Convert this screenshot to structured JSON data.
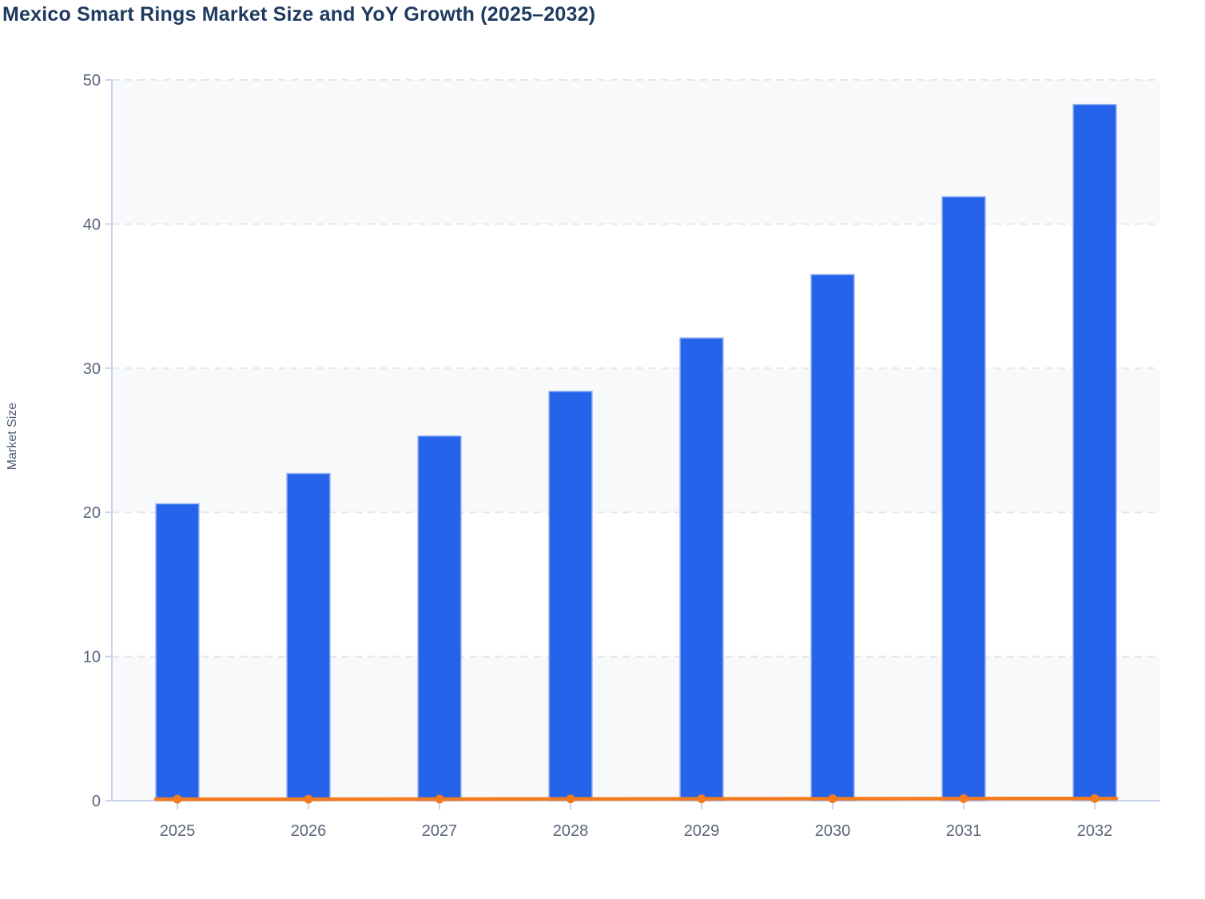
{
  "chart": {
    "title": "Mexico Smart Rings Market Size and YoY Growth (2025–2032)",
    "ylabel": "Market Size",
    "colors": {
      "title_text": "#1e3a5f",
      "axis_label_text": "#4d5a70",
      "tick_label_text": "#5a6578",
      "axis_line": "#c9d3f0",
      "gridline": "#e3e6eb",
      "band_fill": "#f8f9fb",
      "bar_fill": "#2563eb",
      "bar_stroke": "#9db8f2",
      "line_color": "#f57b1d"
    }
  },
  "chart_data": {
    "type": "bar",
    "subtype": "bar+line combo, single y axis",
    "title": "Mexico Smart Rings Market Size and YoY Growth (2025–2032)",
    "xlabel": "",
    "ylabel": "Market Size",
    "categories": [
      "2025",
      "2026",
      "2027",
      "2028",
      "2029",
      "2030",
      "2031",
      "2032"
    ],
    "series": [
      {
        "name": "Market Size",
        "type": "bar",
        "color": "#2563eb",
        "values": [
          20.6,
          22.7,
          25.3,
          28.4,
          32.1,
          36.5,
          41.9,
          48.3
        ]
      },
      {
        "name": "YoY Growth",
        "type": "line",
        "color": "#f57b1d",
        "values": [
          0.105,
          0.107,
          0.112,
          0.123,
          0.131,
          0.139,
          0.148,
          0.153
        ]
      }
    ],
    "ylim": [
      0,
      50
    ],
    "yticks": [
      0,
      10,
      20,
      30,
      40,
      50
    ],
    "grid": "horizontal dashed gridlines with alternating light band fill between ticks",
    "legend": "none"
  }
}
